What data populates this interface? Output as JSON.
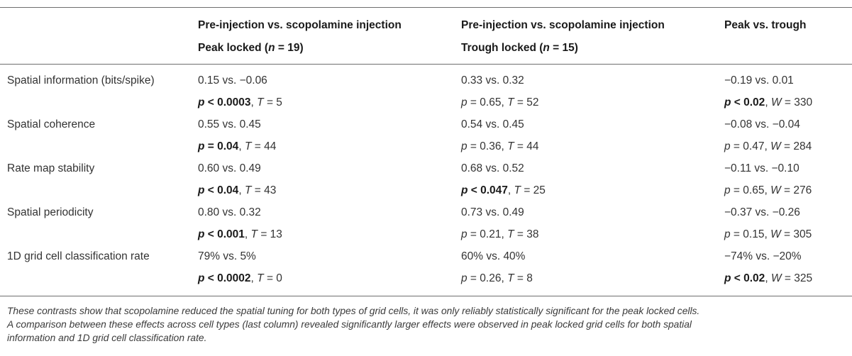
{
  "header": {
    "col1": {
      "line1": "Pre-injection vs. scopolamine injection",
      "line2_prefix": "Peak locked (",
      "n_var": "n",
      "n_eq": " = 19)"
    },
    "col2": {
      "line1": "Pre-injection vs. scopolamine injection",
      "line2_prefix": "Trough locked (",
      "n_var": "n",
      "n_eq": " = 15)"
    },
    "col3": {
      "line1": "Peak vs. trough"
    }
  },
  "rows": [
    {
      "label": "Spatial information (bits/spike)",
      "c1": {
        "values": "0.15 vs. −0.06",
        "p_var": "p",
        "p_rel": " < 0.0003",
        "p_bold": true,
        "stat_var": "T",
        "stat_val": " = 5"
      },
      "c2": {
        "values": "0.33 vs. 0.32",
        "p_var": "p",
        "p_rel": " = 0.65, ",
        "p_bold": false,
        "stat_var": "T",
        "stat_val": " = 52"
      },
      "c3": {
        "values": "−0.19 vs. 0.01",
        "p_var": "p",
        "p_rel": " < 0.02",
        "p_bold": true,
        "stat_var": "W",
        "stat_val": " = 330"
      }
    },
    {
      "label": "Spatial coherence",
      "c1": {
        "values": "0.55 vs. 0.45",
        "p_var": "p",
        "p_rel": " = 0.04",
        "p_bold": true,
        "stat_var": "T",
        "stat_val": " = 44"
      },
      "c2": {
        "values": "0.54 vs. 0.45",
        "p_var": "p",
        "p_rel": " = 0.36, ",
        "p_bold": false,
        "stat_var": "T",
        "stat_val": " = 44"
      },
      "c3": {
        "values": "−0.08 vs. −0.04",
        "p_var": "p",
        "p_rel": " = 0.47, ",
        "p_bold": false,
        "stat_var": "W",
        "stat_val": " = 284"
      }
    },
    {
      "label": "Rate map stability",
      "c1": {
        "values": "0.60 vs. 0.49",
        "p_var": "p",
        "p_rel": " < 0.04",
        "p_bold": true,
        "stat_var": "T",
        "stat_val": " = 43"
      },
      "c2": {
        "values": "0.68 vs. 0.52",
        "p_var": "p",
        "p_rel": " < 0.047",
        "p_bold": true,
        "stat_var": "T",
        "stat_val": " = 25"
      },
      "c3": {
        "values": "−0.11 vs. −0.10",
        "p_var": "p",
        "p_rel": " = 0.65, ",
        "p_bold": false,
        "stat_var": "W",
        "stat_val": " = 276"
      }
    },
    {
      "label": "Spatial periodicity",
      "c1": {
        "values": "0.80 vs. 0.32",
        "p_var": "p",
        "p_rel": " < 0.001",
        "p_bold": true,
        "stat_var": "T",
        "stat_val": " = 13"
      },
      "c2": {
        "values": "0.73 vs. 0.49",
        "p_var": "p",
        "p_rel": " = 0.21, ",
        "p_bold": false,
        "stat_var": "T",
        "stat_val": " = 38"
      },
      "c3": {
        "values": "−0.37 vs. −0.26",
        "p_var": "p",
        "p_rel": " = 0.15, ",
        "p_bold": false,
        "stat_var": "W",
        "stat_val": " = 305"
      }
    },
    {
      "label": "1D grid cell classification rate",
      "c1": {
        "values": "79% vs. 5%",
        "p_var": "p",
        "p_rel": " < 0.0002",
        "p_bold": true,
        "stat_var": "T",
        "stat_val": " = 0"
      },
      "c2": {
        "values": "60% vs. 40%",
        "p_var": "p",
        "p_rel": " = 0.26, ",
        "p_bold": false,
        "stat_var": "T",
        "stat_val": " = 8"
      },
      "c3": {
        "values": "−74% vs. −20%",
        "p_var": "p",
        "p_rel": " < 0.02",
        "p_bold": true,
        "stat_var": "W",
        "stat_val": " = 325"
      }
    }
  ],
  "caption": {
    "line1": "These contrasts show that scopolamine reduced the spatial tuning for both types of grid cells, it was only reliably statistically significant for the peak locked cells.",
    "line2": "A comparison between these effects across cell types (last column) revealed significantly larger effects were observed in peak locked grid cells for both spatial",
    "line3": "information and 1D grid cell classification rate."
  }
}
